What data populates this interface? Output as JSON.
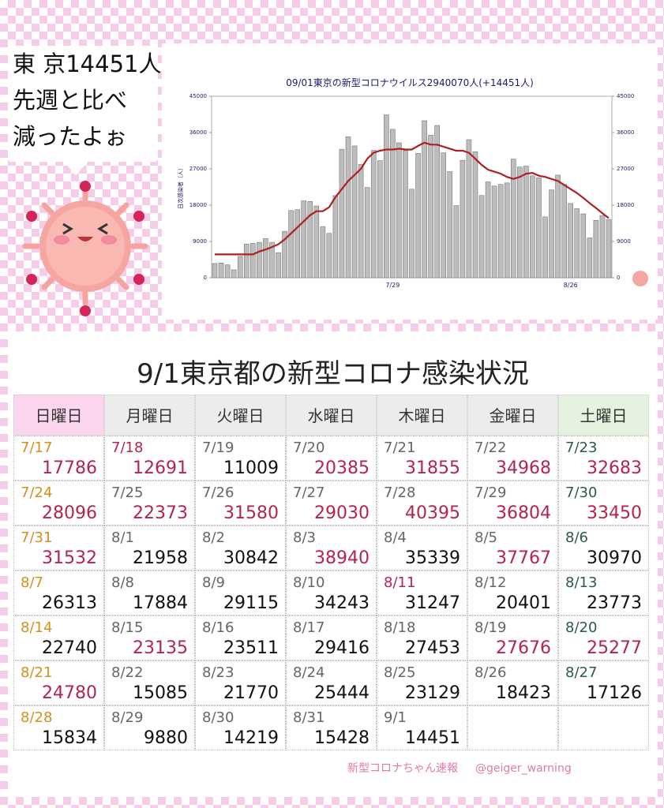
{
  "bubble": {
    "lines": [
      "東 京14451人",
      "先週と比べ",
      "減ったよぉ"
    ]
  },
  "chart_data": {
    "type": "bar",
    "title": "09/01東京の新型コロナウイルス2940070人(+14451人)",
    "y_label": "日次感染者（人）",
    "categories": [
      null,
      null,
      null,
      null,
      null,
      null,
      null,
      null,
      null,
      null,
      null,
      null,
      null,
      null,
      null,
      null,
      null,
      null,
      null,
      null,
      null,
      null,
      null,
      null,
      null,
      null,
      null,
      null,
      "7/29",
      null,
      null,
      null,
      null,
      null,
      null,
      null,
      null,
      null,
      null,
      null,
      null,
      null,
      null,
      null,
      null,
      null,
      null,
      null,
      null,
      null,
      null,
      null,
      null,
      null,
      null,
      null,
      "8/26",
      null,
      null,
      null,
      null,
      null,
      null
    ],
    "series": [
      {
        "color": "#bdbdbd",
        "values": [
          3546,
          3643,
          3194,
          1963,
          5302,
          8341,
          8529,
          8777,
          9716,
          8777,
          6231,
          11511,
          16662,
          16878,
          19059,
          18919,
          17786,
          12691,
          11009,
          20385,
          31855,
          34968,
          32683,
          28096,
          22373,
          31580,
          29030,
          40395,
          36804,
          33450,
          31532,
          21958,
          30842,
          38940,
          35339,
          37767,
          30970,
          26313,
          17884,
          29115,
          34243,
          31247,
          20401,
          23773,
          22740,
          23135,
          23511,
          29416,
          27453,
          27676,
          25277,
          24780,
          15085,
          21770,
          25444,
          23129,
          18423,
          17126,
          15834,
          9880,
          14219,
          15428,
          14451
        ]
      },
      {
        "type": "line",
        "color": "#b01e22",
        "values": [
          5800,
          5800,
          5800,
          5800,
          5800,
          5800,
          5800,
          6500,
          7000,
          7600,
          8300,
          9500,
          11000,
          12500,
          14000,
          15500,
          16500,
          16500,
          17500,
          20000,
          22000,
          24000,
          25500,
          27000,
          29500,
          31000,
          31500,
          31800,
          31800,
          32000,
          31800,
          31800,
          32700,
          33500,
          33000,
          33000,
          32500,
          32000,
          31500,
          31500,
          31000,
          29500,
          28000,
          26800,
          26300,
          25800,
          25000,
          24500,
          25000,
          25800,
          26000,
          25300,
          25000,
          24500,
          24000,
          23000,
          22000,
          21000,
          19800,
          18500,
          17300,
          16000,
          14800
        ]
      }
    ],
    "ylim": [
      0,
      45000
    ],
    "yticks": [
      0,
      9000,
      18000,
      27000,
      36000,
      45000
    ]
  },
  "table": {
    "title": "9/1東京都の新型コロナ感染状況",
    "header": [
      "日曜日",
      "月曜日",
      "火曜日",
      "水曜日",
      "木曜日",
      "金曜日",
      "土曜日"
    ],
    "header_colors": [
      "#fbd5ee",
      "#ececec",
      "#ececec",
      "#ececec",
      "#ececec",
      "#ececec",
      "#e4f2df"
    ],
    "rows": [
      [
        {
          "date": "7/17",
          "count": 17786,
          "date_color": "#d4901c",
          "count_color": "#b5244c"
        },
        {
          "date": "7/18",
          "count": 12691,
          "date_color": "#b5244c",
          "count_color": "#b5244c"
        },
        {
          "date": "7/19",
          "count": 11009,
          "date_color": "#666666",
          "count_color": "#111111"
        },
        {
          "date": "7/20",
          "count": 20385,
          "date_color": "#666666",
          "count_color": "#b5244c"
        },
        {
          "date": "7/21",
          "count": 31855,
          "date_color": "#666666",
          "count_color": "#b5244c"
        },
        {
          "date": "7/22",
          "count": 34968,
          "date_color": "#666666",
          "count_color": "#b5244c"
        },
        {
          "date": "7/23",
          "count": 32683,
          "date_color": "#2a5a48",
          "count_color": "#b5244c"
        }
      ],
      [
        {
          "date": "7/24",
          "count": 28096,
          "date_color": "#d4901c",
          "count_color": "#b5244c"
        },
        {
          "date": "7/25",
          "count": 22373,
          "date_color": "#666666",
          "count_color": "#b5244c"
        },
        {
          "date": "7/26",
          "count": 31580,
          "date_color": "#666666",
          "count_color": "#b5244c"
        },
        {
          "date": "7/27",
          "count": 29030,
          "date_color": "#666666",
          "count_color": "#b5244c"
        },
        {
          "date": "7/28",
          "count": 40395,
          "date_color": "#666666",
          "count_color": "#b5244c"
        },
        {
          "date": "7/29",
          "count": 36804,
          "date_color": "#666666",
          "count_color": "#b5244c"
        },
        {
          "date": "7/30",
          "count": 33450,
          "date_color": "#2a5a48",
          "count_color": "#b5244c"
        }
      ],
      [
        {
          "date": "7/31",
          "count": 31532,
          "date_color": "#d4901c",
          "count_color": "#b5244c"
        },
        {
          "date": "8/1",
          "count": 21958,
          "date_color": "#666666",
          "count_color": "#111111"
        },
        {
          "date": "8/2",
          "count": 30842,
          "date_color": "#666666",
          "count_color": "#111111"
        },
        {
          "date": "8/3",
          "count": 38940,
          "date_color": "#666666",
          "count_color": "#b5244c"
        },
        {
          "date": "8/4",
          "count": 35339,
          "date_color": "#666666",
          "count_color": "#111111"
        },
        {
          "date": "8/5",
          "count": 37767,
          "date_color": "#666666",
          "count_color": "#b5244c"
        },
        {
          "date": "8/6",
          "count": 30970,
          "date_color": "#2a5a48",
          "count_color": "#111111"
        }
      ],
      [
        {
          "date": "8/7",
          "count": 26313,
          "date_color": "#d4901c",
          "count_color": "#111111"
        },
        {
          "date": "8/8",
          "count": 17884,
          "date_color": "#666666",
          "count_color": "#111111"
        },
        {
          "date": "8/9",
          "count": 29115,
          "date_color": "#666666",
          "count_color": "#111111"
        },
        {
          "date": "8/10",
          "count": 34243,
          "date_color": "#666666",
          "count_color": "#111111"
        },
        {
          "date": "8/11",
          "count": 31247,
          "date_color": "#b5244c",
          "count_color": "#111111"
        },
        {
          "date": "8/12",
          "count": 20401,
          "date_color": "#666666",
          "count_color": "#111111"
        },
        {
          "date": "8/13",
          "count": 23773,
          "date_color": "#2a5a48",
          "count_color": "#111111"
        }
      ],
      [
        {
          "date": "8/14",
          "count": 22740,
          "date_color": "#d4901c",
          "count_color": "#111111"
        },
        {
          "date": "8/15",
          "count": 23135,
          "date_color": "#666666",
          "count_color": "#b5244c"
        },
        {
          "date": "8/16",
          "count": 23511,
          "date_color": "#666666",
          "count_color": "#111111"
        },
        {
          "date": "8/17",
          "count": 29416,
          "date_color": "#666666",
          "count_color": "#111111"
        },
        {
          "date": "8/18",
          "count": 27453,
          "date_color": "#666666",
          "count_color": "#111111"
        },
        {
          "date": "8/19",
          "count": 27676,
          "date_color": "#666666",
          "count_color": "#b5244c"
        },
        {
          "date": "8/20",
          "count": 25277,
          "date_color": "#2a5a48",
          "count_color": "#b5244c"
        }
      ],
      [
        {
          "date": "8/21",
          "count": 24780,
          "date_color": "#d4901c",
          "count_color": "#b5244c"
        },
        {
          "date": "8/22",
          "count": 15085,
          "date_color": "#666666",
          "count_color": "#111111"
        },
        {
          "date": "8/23",
          "count": 21770,
          "date_color": "#666666",
          "count_color": "#111111"
        },
        {
          "date": "8/24",
          "count": 25444,
          "date_color": "#666666",
          "count_color": "#111111"
        },
        {
          "date": "8/25",
          "count": 23129,
          "date_color": "#666666",
          "count_color": "#111111"
        },
        {
          "date": "8/26",
          "count": 18423,
          "date_color": "#666666",
          "count_color": "#111111"
        },
        {
          "date": "8/27",
          "count": 17126,
          "date_color": "#2a5a48",
          "count_color": "#111111"
        }
      ],
      [
        {
          "date": "8/28",
          "count": 15834,
          "date_color": "#d4901c",
          "count_color": "#111111"
        },
        {
          "date": "8/29",
          "count": 9880,
          "date_color": "#666666",
          "count_color": "#111111"
        },
        {
          "date": "8/30",
          "count": 14219,
          "date_color": "#666666",
          "count_color": "#111111"
        },
        {
          "date": "8/31",
          "count": 15428,
          "date_color": "#666666",
          "count_color": "#111111"
        },
        {
          "date": "9/1",
          "count": 14451,
          "date_color": "#666666",
          "count_color": "#111111"
        }
      ]
    ]
  },
  "footer": {
    "brand": "新型コロナちゃん速報",
    "handle": "@geiger_warning"
  }
}
